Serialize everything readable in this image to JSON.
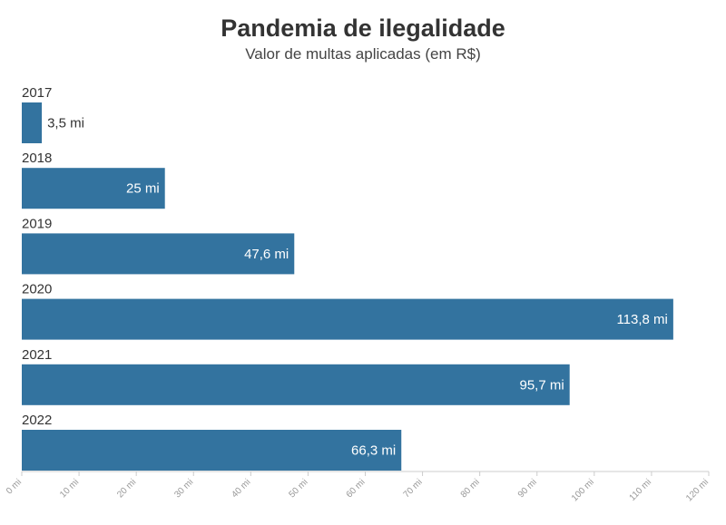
{
  "chart_data": {
    "type": "bar",
    "orientation": "horizontal",
    "title": "Pandemia de ilegalidade",
    "subtitle": "Valor de multas aplicadas (em R$)",
    "categories": [
      "2017",
      "2018",
      "2019",
      "2020",
      "2021",
      "2022"
    ],
    "values": [
      3.5,
      25,
      47.6,
      113.8,
      95.7,
      66.3
    ],
    "value_labels": [
      "3,5 mi",
      "25 mi",
      "47,6 mi",
      "113,8 mi",
      "95,7 mi",
      "66,3 mi"
    ],
    "xlim": [
      0,
      120
    ],
    "ticks": [
      0,
      10,
      20,
      30,
      40,
      50,
      60,
      70,
      80,
      90,
      100,
      110,
      120
    ],
    "tick_labels": [
      "0 mi",
      "10 mi",
      "20 mi",
      "30 mi",
      "40 mi",
      "50 mi",
      "60 mi",
      "70 mi",
      "80 mi",
      "90 mi",
      "100 mi",
      "110 mi",
      "120 mi"
    ],
    "bar_color": "#33739f",
    "xlabel": "",
    "ylabel": "",
    "grid": false,
    "legend": "none"
  }
}
